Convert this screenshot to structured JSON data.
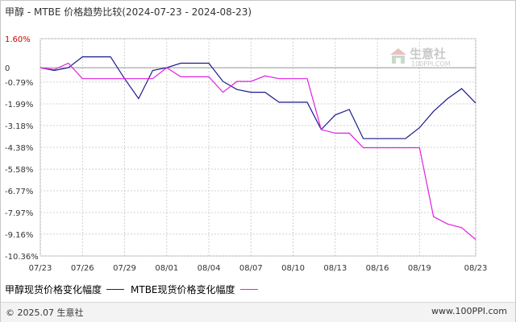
{
  "title": "甲醇 - MTBE 价格趋势比较(2024-07-23 - 2024-08-23)",
  "footer": {
    "copyright": "© 2025.07 生意社",
    "url": "www.100PPI.com"
  },
  "watermark": {
    "text": "生意社",
    "url": "100PPI.COM"
  },
  "chart_data": {
    "type": "line",
    "title": "甲醇 - MTBE 价格趋势比较(2024-07-23 - 2024-08-23)",
    "xlabel": "",
    "ylabel": "",
    "ylim": [
      -10.36,
      1.6
    ],
    "y_ticks": [
      1.6,
      0,
      -0.79,
      -1.99,
      -3.18,
      -4.38,
      -5.58,
      -6.77,
      -7.97,
      -9.16,
      -10.36
    ],
    "y_tick_labels": [
      "1.60%",
      "0",
      "-0.79%",
      "-1.99%",
      "-3.18%",
      "-4.38%",
      "-5.58%",
      "-6.77%",
      "-7.97%",
      "-9.16%",
      "-10.36%"
    ],
    "x": [
      "07/23",
      "07/24",
      "07/25",
      "07/26",
      "07/27",
      "07/28",
      "07/29",
      "07/30",
      "07/31",
      "08/01",
      "08/02",
      "08/03",
      "08/04",
      "08/05",
      "08/06",
      "08/07",
      "08/08",
      "08/09",
      "08/10",
      "08/11",
      "08/12",
      "08/13",
      "08/14",
      "08/15",
      "08/16",
      "08/17",
      "08/18",
      "08/19",
      "08/20",
      "08/21",
      "08/22",
      "08/23"
    ],
    "x_tick_labels": [
      "07/23",
      "07/26",
      "07/29",
      "08/01",
      "08/04",
      "08/07",
      "08/10",
      "08/13",
      "08/16",
      "08/19",
      "08/23"
    ],
    "x_tick_index": [
      0,
      3,
      6,
      9,
      12,
      15,
      18,
      21,
      24,
      27,
      31
    ],
    "grid": true,
    "legend_position": "bottom-left",
    "series": [
      {
        "name": "甲醇现货价格变化幅度",
        "color": "#1a1a8c",
        "values": [
          0.0,
          -0.15,
          0.0,
          0.6,
          0.6,
          0.6,
          -0.6,
          -1.7,
          -0.15,
          0.0,
          0.25,
          0.25,
          0.25,
          -0.75,
          -1.2,
          -1.35,
          -1.35,
          -1.9,
          -1.9,
          -1.9,
          -3.4,
          -2.6,
          -2.3,
          -3.9,
          -3.9,
          -3.9,
          -3.9,
          -3.3,
          -2.4,
          -1.7,
          -1.15,
          -1.95
        ]
      },
      {
        "name": "MTBE现货价格变化幅度",
        "color": "#e020e0",
        "values": [
          0.0,
          -0.1,
          0.25,
          -0.6,
          -0.6,
          -0.6,
          -0.6,
          -0.6,
          -0.6,
          0.0,
          -0.5,
          -0.5,
          -0.5,
          -1.35,
          -0.75,
          -0.75,
          -0.45,
          -0.6,
          -0.6,
          -0.6,
          -3.4,
          -3.6,
          -3.6,
          -4.4,
          -4.4,
          -4.4,
          -4.4,
          -4.4,
          -8.2,
          -8.6,
          -8.8,
          -9.45
        ]
      }
    ]
  }
}
